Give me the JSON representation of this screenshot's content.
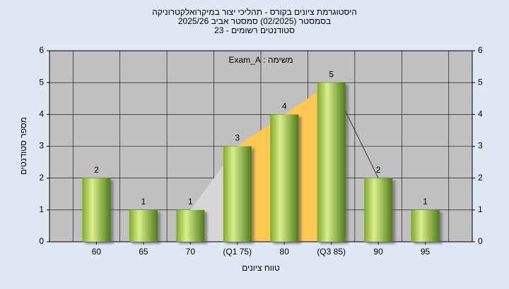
{
  "chart_data": {
    "type": "bar",
    "title": [
      "היסטוגרמת ציונים בקורס - תהליכי יצור במיקרואלקטרוניקה",
      "בסמסטר (02/2025) סמסטר אביב 2025/26",
      "סטודנטים רשומים - 23"
    ],
    "annotation": "משימה : Exam_A",
    "x_label": "טווח ציונים",
    "y_label": "מספר סטודנטים",
    "categories": [
      "60",
      "65",
      "70",
      "(Q1 75)",
      "80",
      "(Q3 85)",
      "90",
      "95"
    ],
    "values": [
      2,
      1,
      1,
      3,
      4,
      5,
      2,
      1
    ],
    "color": "#9acd32",
    "ylim": [
      0,
      6
    ],
    "yticks": [
      0,
      1,
      2,
      3,
      4,
      5,
      6
    ],
    "y2lim": [
      0,
      6
    ],
    "y2ticks": [
      0,
      1,
      2,
      3,
      4,
      5,
      6
    ],
    "grid": true
  }
}
